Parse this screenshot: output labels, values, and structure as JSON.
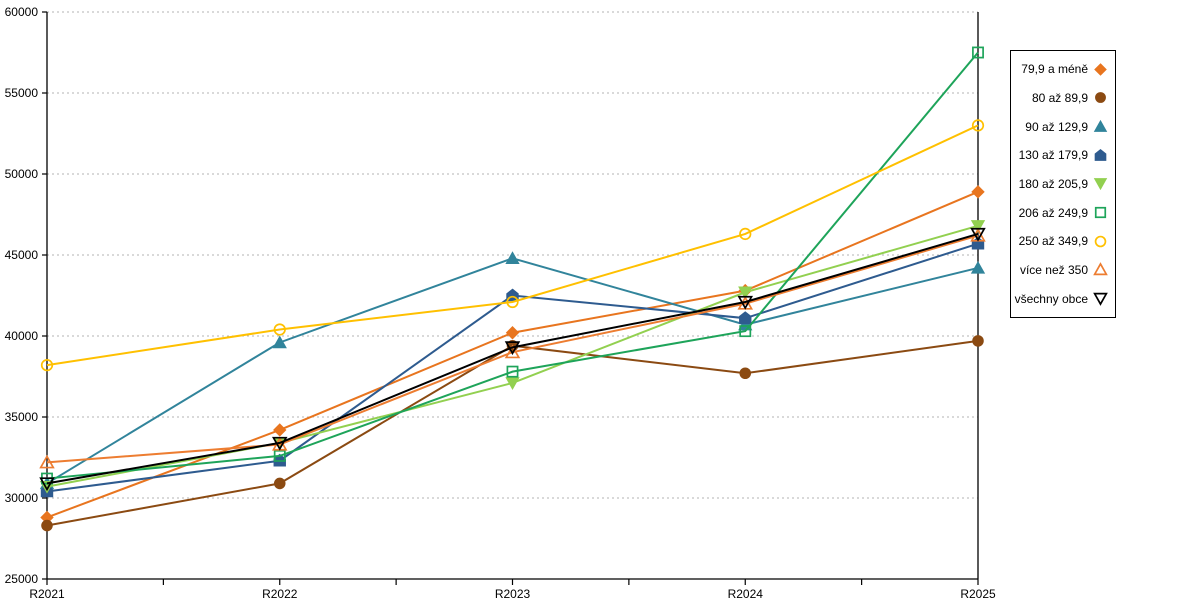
{
  "chart_data": {
    "type": "line",
    "title": "",
    "xlabel": "",
    "ylabel": "",
    "categories": [
      "R2021",
      "R2022",
      "R2023",
      "R2024",
      "R2025"
    ],
    "y_axis": {
      "min": 25000,
      "max": 60000,
      "step": 5000,
      "tick_labels": [
        "25000",
        "30000",
        "35000",
        "40000",
        "45000",
        "50000",
        "55000",
        "60000"
      ]
    },
    "grid": "horizontal-dotted",
    "grid_color": "#b3b3b3",
    "axis_color": "#000000",
    "legend_position": "right",
    "series": [
      {
        "name": "79,9 a méně",
        "color": "#E8751F",
        "marker": "diamond",
        "marker_style": "filled",
        "values": [
          28800,
          34200,
          40200,
          42800,
          48900
        ]
      },
      {
        "name": "80 až 89,9",
        "color": "#8B4A12",
        "marker": "circle",
        "marker_style": "filled",
        "values": [
          28300,
          30900,
          39400,
          37700,
          39700
        ]
      },
      {
        "name": "90 až 129,9",
        "color": "#31849B",
        "marker": "triangle-up",
        "marker_style": "filled",
        "values": [
          30900,
          39600,
          44800,
          40700,
          44200
        ]
      },
      {
        "name": "130 až 179,9",
        "color": "#2E5B8F",
        "marker": "pentagon",
        "marker_style": "filled",
        "values": [
          30400,
          32300,
          42500,
          41100,
          45700
        ]
      },
      {
        "name": "180 až 205,9",
        "color": "#92D050",
        "marker": "triangle-down",
        "marker_style": "filled",
        "values": [
          30700,
          33400,
          37100,
          42700,
          46800
        ]
      },
      {
        "name": "206 až 249,9",
        "color": "#1EA45A",
        "marker": "square",
        "marker_style": "hollow",
        "values": [
          31200,
          32600,
          37800,
          40300,
          57500
        ]
      },
      {
        "name": "250 až 349,9",
        "color": "#FFC000",
        "marker": "circle",
        "marker_style": "hollow",
        "values": [
          38200,
          40400,
          42100,
          46300,
          53000
        ]
      },
      {
        "name": "více než 350",
        "color": "#ED7D31",
        "marker": "triangle-up",
        "marker_style": "hollow",
        "values": [
          32200,
          33300,
          39000,
          42000,
          46200
        ]
      },
      {
        "name": "všechny obce",
        "color": "#000000",
        "marker": "triangle-down",
        "marker_style": "hollow",
        "values": [
          30900,
          33400,
          39300,
          42100,
          46300
        ]
      }
    ],
    "layout": {
      "plot_left": 47,
      "plot_right": 978,
      "plot_top": 12,
      "plot_bottom": 579,
      "x_minor_ticks_per_interval": 2
    }
  }
}
